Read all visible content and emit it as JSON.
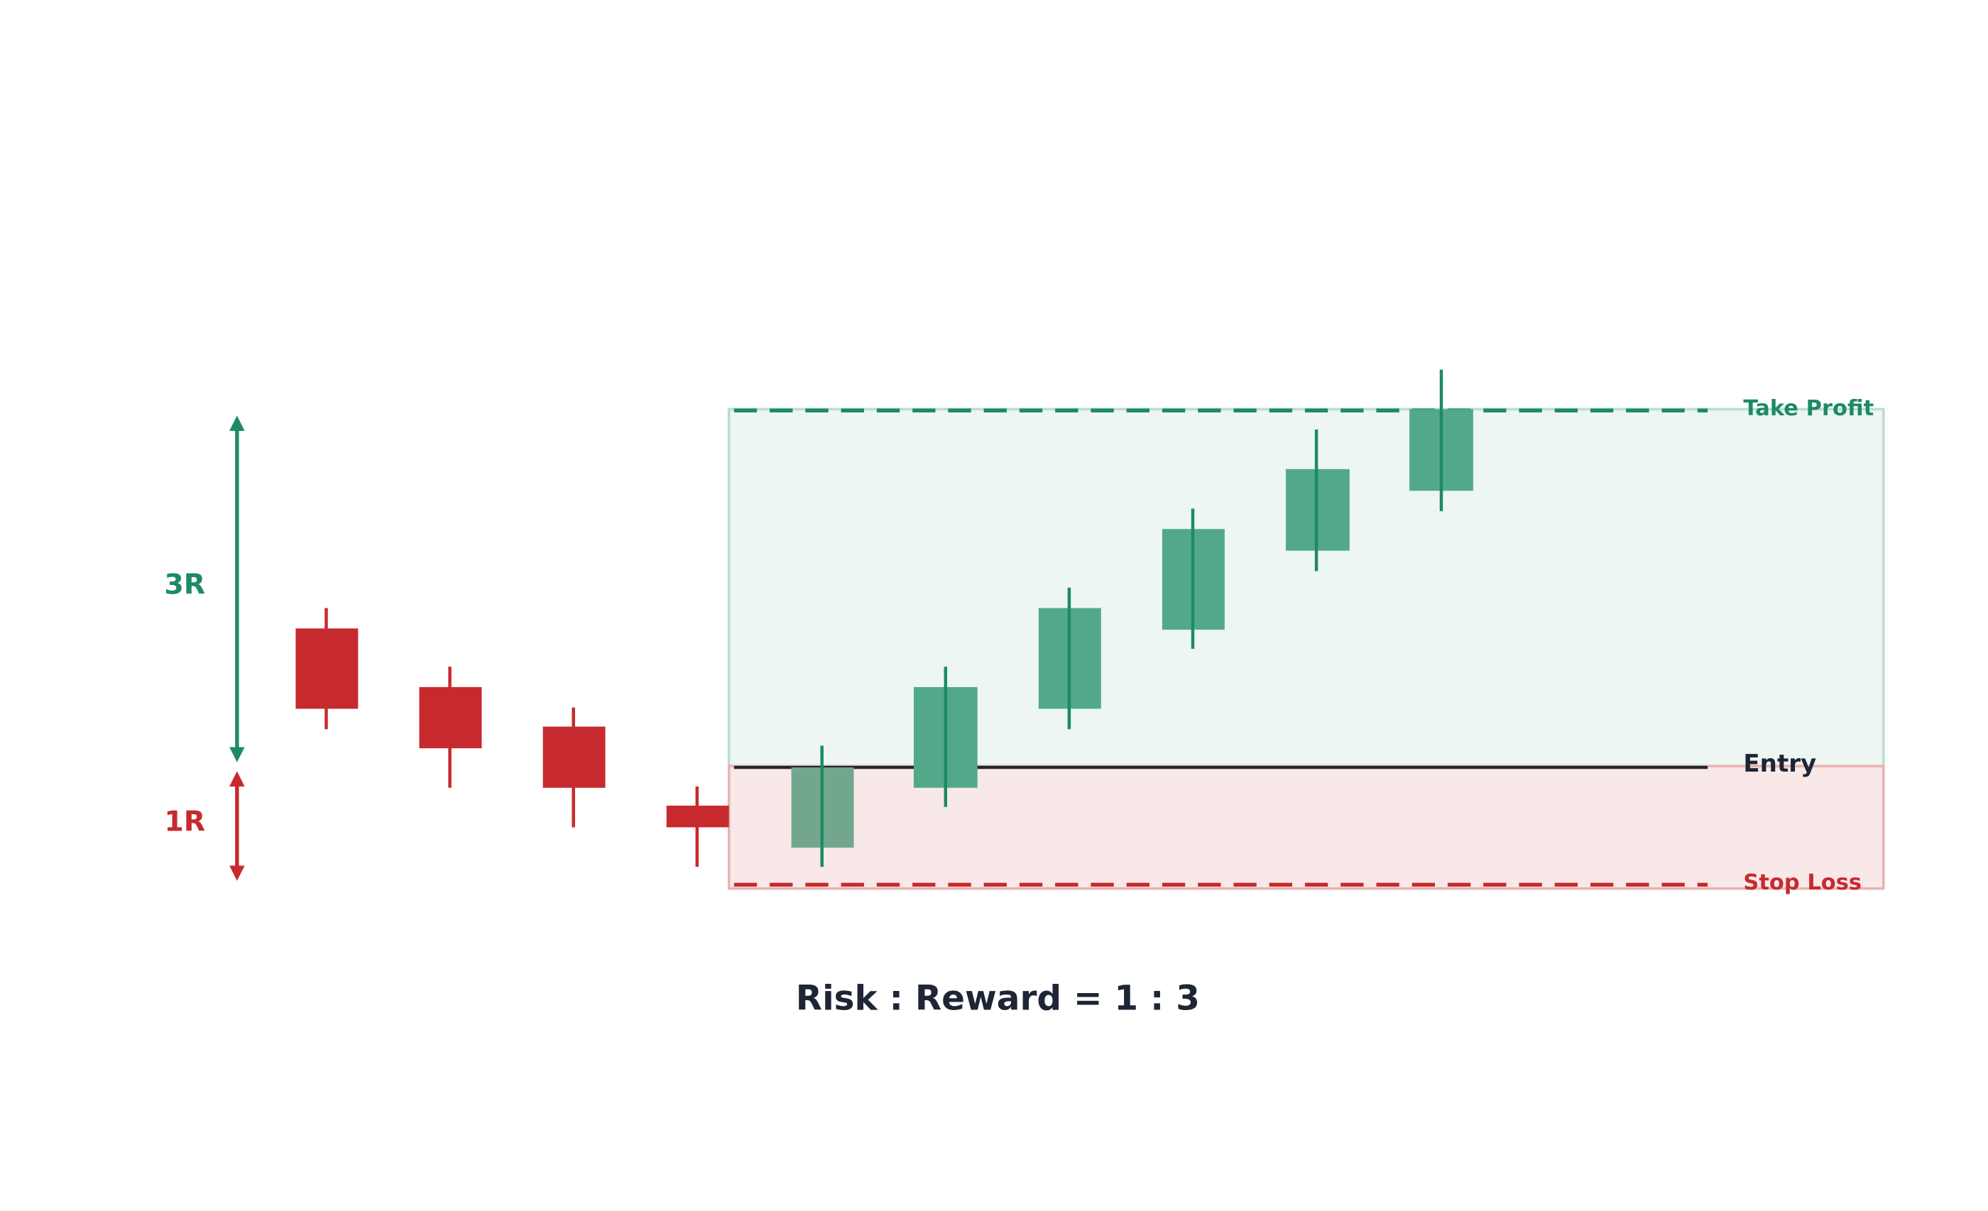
{
  "labels": {
    "reward": "3R",
    "risk": "1R"
  },
  "levels": {
    "take_profit": "Take Profit",
    "entry": "Entry",
    "stop_loss": "Stop Loss"
  },
  "caption": "Risk : Reward = 1 : 3"
}
